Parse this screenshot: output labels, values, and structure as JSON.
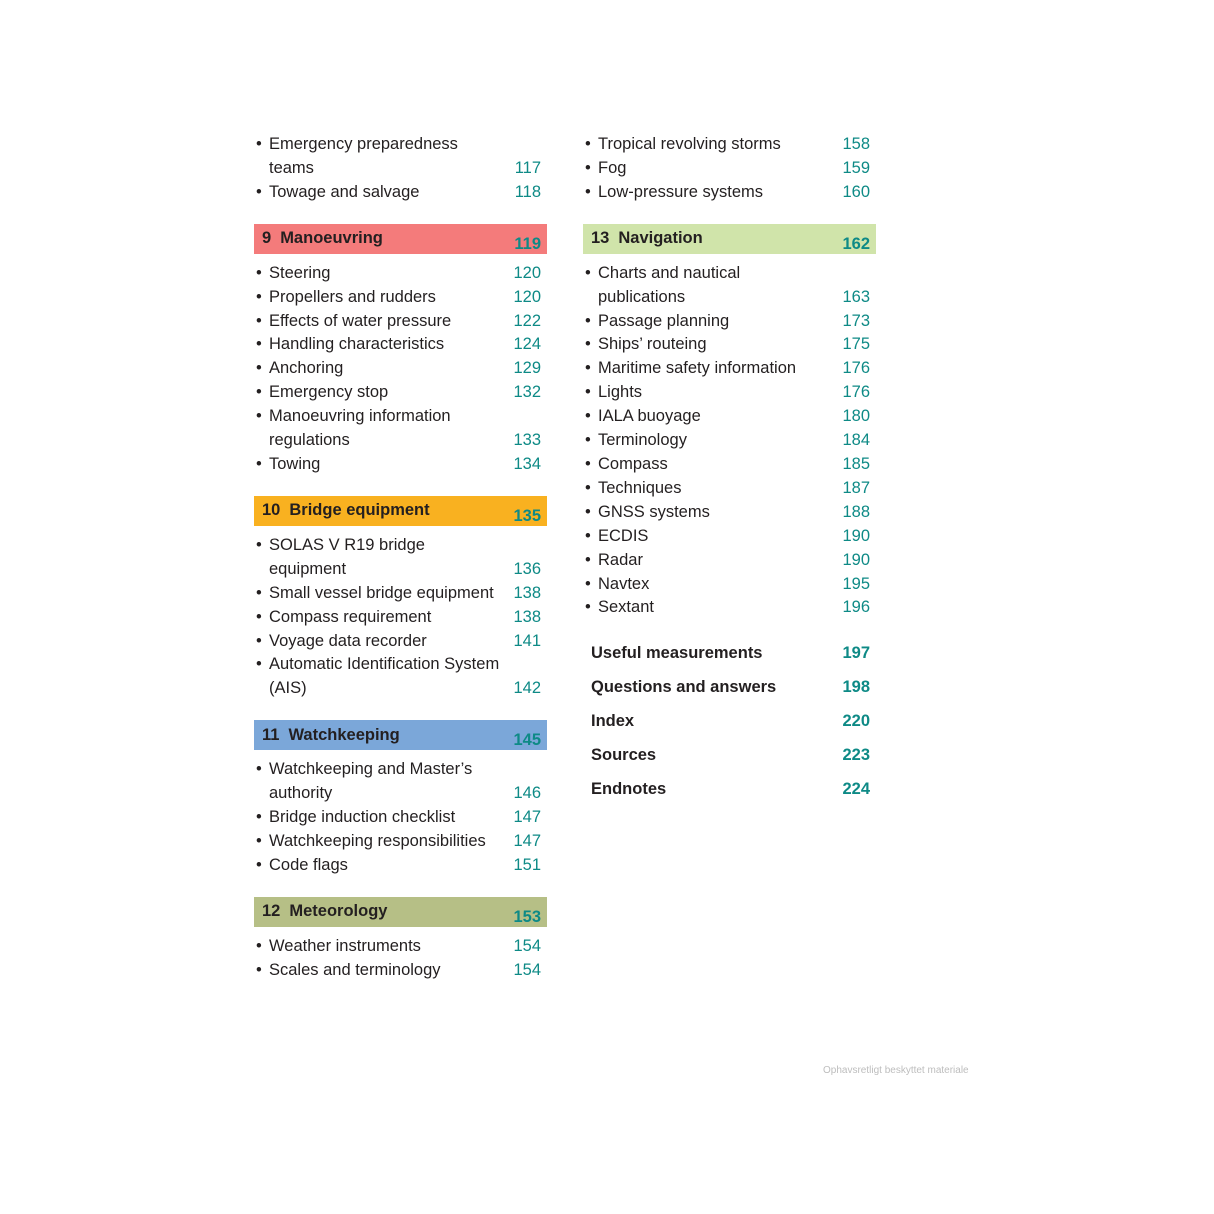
{
  "left": [
    {
      "type": "item",
      "text": "Emergency preparedness teams",
      "page": "117"
    },
    {
      "type": "item",
      "text": "Towage and salvage",
      "page": "118"
    },
    {
      "type": "header",
      "num": "9",
      "text": "Manoeuvring",
      "page": "119",
      "color": "#f47b7b"
    },
    {
      "type": "item",
      "text": "Steering",
      "page": "120"
    },
    {
      "type": "item",
      "text": "Propellers and rudders",
      "page": "120"
    },
    {
      "type": "item",
      "text": "Effects of water pressure",
      "page": "122"
    },
    {
      "type": "item",
      "text": "Handling characteristics",
      "page": "124"
    },
    {
      "type": "item",
      "text": "Anchoring",
      "page": "129"
    },
    {
      "type": "item",
      "text": "Emergency stop",
      "page": "132"
    },
    {
      "type": "item",
      "text": "Manoeuvring information regulations",
      "page": "133"
    },
    {
      "type": "item",
      "text": "Towing",
      "page": "134"
    },
    {
      "type": "header",
      "num": "10",
      "text": "Bridge equipment",
      "page": "135",
      "color": "#f9b120"
    },
    {
      "type": "item",
      "text": "SOLAS V R19 bridge equipment",
      "page": "136"
    },
    {
      "type": "item",
      "text": "Small vessel bridge equipment",
      "page": "138"
    },
    {
      "type": "item",
      "text": "Compass requirement",
      "page": "138"
    },
    {
      "type": "item",
      "text": "Voyage data recorder",
      "page": "141"
    },
    {
      "type": "item",
      "text": "Automatic Identification System (AIS)",
      "page": "142"
    },
    {
      "type": "header",
      "num": "11",
      "text": "Watchkeeping",
      "page": "145",
      "color": "#7ba7d9"
    },
    {
      "type": "item",
      "text": "Watchkeeping and Master’s authority",
      "page": "146"
    },
    {
      "type": "item",
      "text": "Bridge induction checklist",
      "page": "147"
    },
    {
      "type": "item",
      "text": "Watchkeeping responsibilities",
      "page": "147"
    },
    {
      "type": "item",
      "text": "Code flags",
      "page": "151"
    },
    {
      "type": "header",
      "num": "12",
      "text": "Meteorology",
      "page": "153",
      "color": "#b6bf86"
    },
    {
      "type": "item",
      "text": "Weather instruments",
      "page": "154"
    },
    {
      "type": "item",
      "text": "Scales and terminology",
      "page": "154"
    }
  ],
  "right": [
    {
      "type": "item",
      "text": "Tropical revolving storms",
      "page": "158"
    },
    {
      "type": "item",
      "text": "Fog",
      "page": "159"
    },
    {
      "type": "item",
      "text": "Low-pressure systems",
      "page": "160"
    },
    {
      "type": "header",
      "num": "13",
      "text": "Navigation",
      "page": "162",
      "color": "#d0e4aa"
    },
    {
      "type": "item",
      "text": "Charts and nautical publications",
      "page": "163"
    },
    {
      "type": "item",
      "text": "Passage planning",
      "page": "173"
    },
    {
      "type": "item",
      "text": "Ships’ routeing",
      "page": "175"
    },
    {
      "type": "item",
      "text": "Maritime safety information",
      "page": "176"
    },
    {
      "type": "item",
      "text": "Lights",
      "page": "176"
    },
    {
      "type": "item",
      "text": "IALA buoyage",
      "page": "180"
    },
    {
      "type": "item",
      "text": "Terminology",
      "page": "184"
    },
    {
      "type": "item",
      "text": "Compass",
      "page": "185"
    },
    {
      "type": "item",
      "text": "Techniques",
      "page": "187"
    },
    {
      "type": "item",
      "text": "GNSS systems",
      "page": "188"
    },
    {
      "type": "item",
      "text": "ECDIS",
      "page": "190"
    },
    {
      "type": "item",
      "text": "Radar",
      "page": "190"
    },
    {
      "type": "item",
      "text": "Navtex",
      "page": "195"
    },
    {
      "type": "item",
      "text": "Sextant",
      "page": "196"
    },
    {
      "type": "bold",
      "text": "Useful measurements",
      "page": "197"
    },
    {
      "type": "bold",
      "text": "Questions and answers",
      "page": "198"
    },
    {
      "type": "bold",
      "text": "Index",
      "page": "220"
    },
    {
      "type": "bold",
      "text": "Sources",
      "page": "223"
    },
    {
      "type": "bold",
      "text": "Endnotes",
      "page": "224"
    }
  ],
  "watermark": "Ophavsretligt beskyttet materiale",
  "colors": {
    "page_number": "#0e8a86",
    "text": "#231f20"
  }
}
